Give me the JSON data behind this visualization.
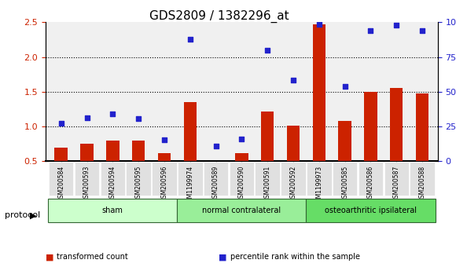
{
  "title": "GDS2809 / 1382296_at",
  "samples": [
    "GSM200584",
    "GSM200593",
    "GSM200594",
    "GSM200595",
    "GSM200596",
    "GSM1199974",
    "GSM200589",
    "GSM200590",
    "GSM200591",
    "GSM200592",
    "GSM1199973",
    "GSM200585",
    "GSM200586",
    "GSM200587",
    "GSM200588"
  ],
  "red_bars": [
    0.7,
    0.75,
    0.8,
    0.8,
    0.62,
    1.35,
    0.5,
    0.62,
    1.22,
    1.01,
    2.47,
    1.08,
    1.5,
    1.55,
    1.48
  ],
  "blue_dots": [
    1.05,
    1.12,
    1.18,
    1.11,
    0.81,
    2.25,
    0.72,
    0.82,
    2.1,
    1.67,
    2.47,
    1.58,
    2.38,
    2.46,
    2.38
  ],
  "groups": [
    {
      "label": "sham",
      "start": 0,
      "end": 5,
      "color": "#ccffcc"
    },
    {
      "label": "normal contralateral",
      "start": 5,
      "end": 10,
      "color": "#99ee99"
    },
    {
      "label": "osteoarthritic ipsilateral",
      "start": 10,
      "end": 15,
      "color": "#66dd66"
    }
  ],
  "ylim_left": [
    0.5,
    2.5
  ],
  "ylim_right": [
    0,
    100
  ],
  "yticks_left": [
    0.5,
    1.0,
    1.5,
    2.0,
    2.5
  ],
  "yticks_right": [
    0,
    25,
    50,
    75,
    100
  ],
  "ytick_labels_right": [
    "0",
    "25",
    "50",
    "75",
    "100%"
  ],
  "bar_color": "#cc2200",
  "dot_color": "#2222cc",
  "bar_bottom": 0.5,
  "bg_color": "#f0f0f0",
  "protocol_label": "protocol",
  "legend_items": [
    {
      "color": "#cc2200",
      "label": "transformed count"
    },
    {
      "color": "#2222cc",
      "label": "percentile rank within the sample"
    }
  ]
}
